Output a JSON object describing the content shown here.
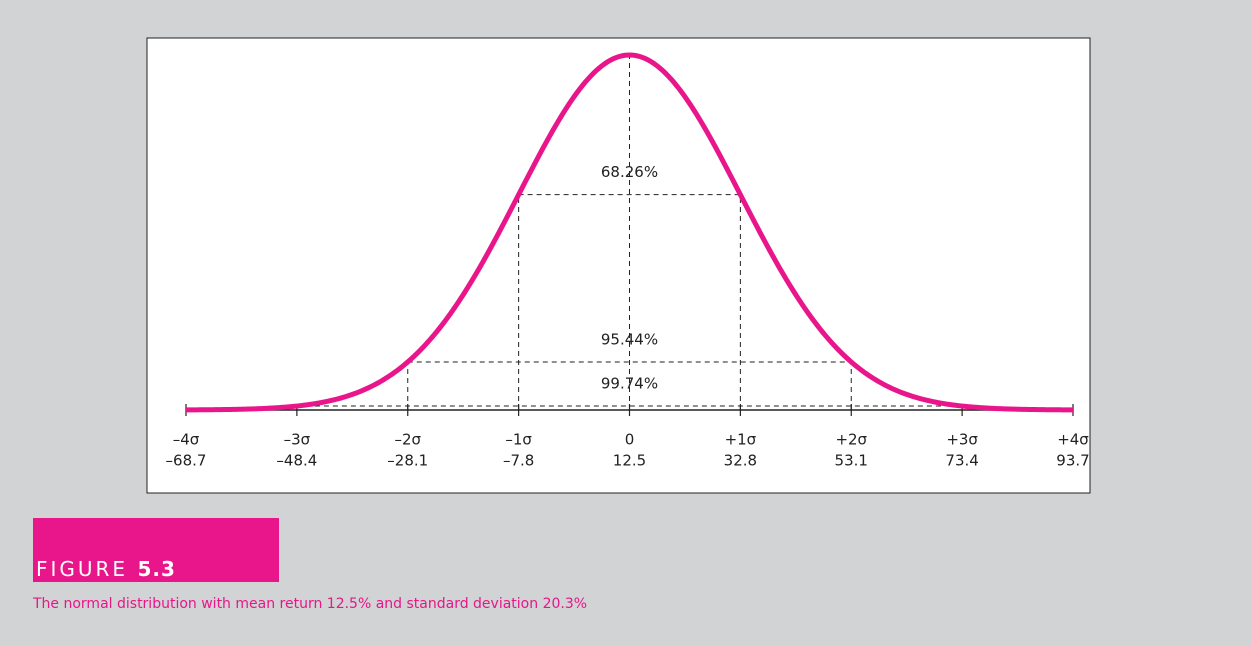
{
  "chart_data": {
    "type": "normal",
    "mean": 12.5,
    "sd": 20.3,
    "color": "#e8168a",
    "xlim": [
      -68.7,
      93.7
    ],
    "xticks": [
      {
        "value": -68.7,
        "label": "–68.7"
      },
      {
        "value": -48.4,
        "label": "–48.4"
      },
      {
        "value": -28.1,
        "label": "–28.1"
      },
      {
        "value": -7.8,
        "label": "–7.8"
      },
      12.5,
      32.8,
      53.1,
      73.4,
      93.7
    ],
    "sigma_labels": [
      "–4σ",
      "–3σ",
      "–2σ",
      "–1σ",
      "0",
      "+1σ",
      "+2σ",
      "+3σ",
      "+4σ"
    ],
    "intervals": [
      68.26,
      95.44,
      99.74
    ],
    "interval_labels": [
      "68.26%",
      "95.44%",
      "99.74%"
    ]
  },
  "figure": {
    "label": "FIGURE",
    "number": "5.3",
    "caption": "The normal distribution with mean return 12.5% and standard deviation 20.3%"
  }
}
